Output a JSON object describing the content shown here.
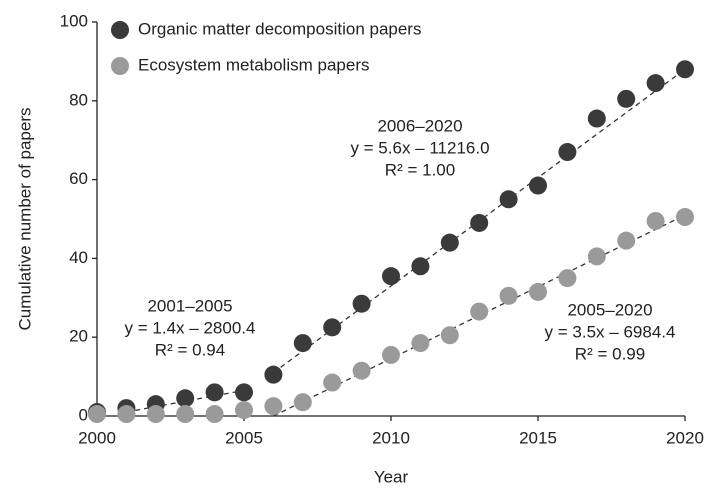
{
  "chart_data": {
    "type": "scatter",
    "x_label": "Year",
    "y_label": "Cumulative number of papers",
    "x": [
      2000,
      2001,
      2002,
      2003,
      2004,
      2005,
      2006,
      2007,
      2008,
      2009,
      2010,
      2011,
      2012,
      2013,
      2014,
      2015,
      2016,
      2017,
      2018,
      2019,
      2020
    ],
    "series": [
      {
        "name": "Organic matter decomposition papers",
        "color": "#3a3a3a",
        "values": [
          1,
          2,
          3,
          4.5,
          6,
          6,
          10.5,
          18.5,
          22.5,
          28.5,
          35.5,
          38,
          44,
          49,
          55,
          58.5,
          67,
          75.5,
          80.5,
          84.5,
          88
        ]
      },
      {
        "name": "Ecosystem metabolism papers",
        "color": "#9a9a9a",
        "values": [
          0.5,
          0.5,
          0.5,
          0.5,
          0.5,
          1.5,
          2.5,
          3.5,
          8.5,
          11.5,
          15.5,
          18.5,
          20.5,
          26.5,
          30.5,
          31.5,
          35,
          40.5,
          44.5,
          49.5,
          50.5
        ]
      }
    ],
    "trendlines": [
      {
        "x": [
          2001,
          2005
        ],
        "values": [
          1,
          6.5
        ]
      },
      {
        "x": [
          2006,
          2020
        ],
        "values": [
          11,
          88
        ]
      },
      {
        "x": [
          2006,
          2020
        ],
        "values": [
          0,
          51
        ]
      }
    ],
    "annotations": [
      [
        "2006–2020",
        "y = 5.6x – 11216.0",
        "R² = 1.00"
      ],
      [
        "2001–2005",
        "y = 1.4x – 2800.4",
        "R² = 0.94"
      ],
      [
        "2005–2020",
        "y = 3.5x – 6984.4",
        "R² = 0.99"
      ]
    ],
    "xlim": [
      2000,
      2020
    ],
    "xticks": [
      2000,
      2005,
      2010,
      2015,
      2020
    ],
    "ylim": [
      0,
      100
    ],
    "yticks": [
      0,
      20,
      40,
      60,
      80,
      100
    ],
    "grid": false,
    "legend": "top-left"
  }
}
